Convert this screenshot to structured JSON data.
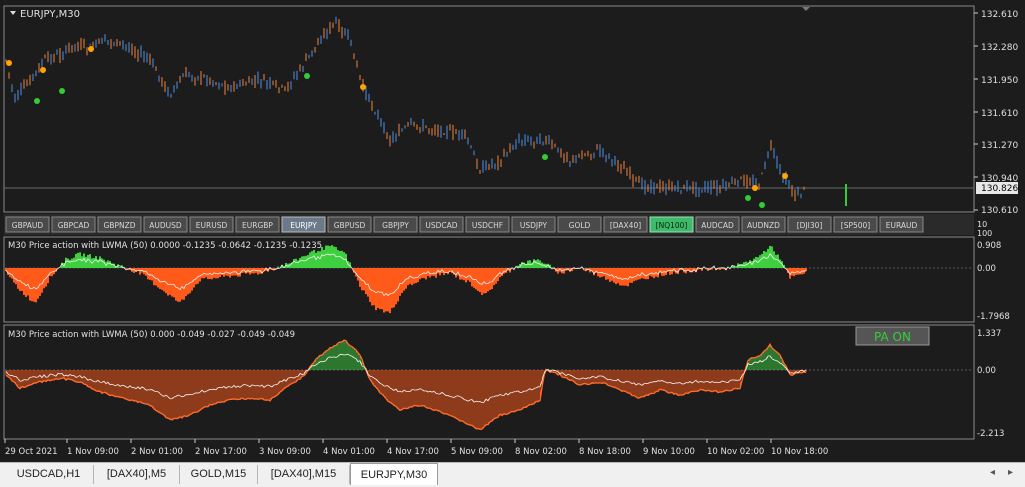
{
  "chart": {
    "symbol_label": "EURJPY,M30",
    "price_axis": [
      "132.610",
      "132.280",
      "131.950",
      "131.610",
      "131.270",
      "130.940",
      "130.610"
    ],
    "current_price": "130.826",
    "colors": {
      "background": "#1c1c1c",
      "bull": "#4f8fe8",
      "bear": "#f0843c",
      "dot_orange": "#ffa500",
      "dot_green": "#33cc33",
      "grid": "#555555"
    }
  },
  "symbol_buttons": [
    {
      "label": "GBPAUD",
      "state": "normal"
    },
    {
      "label": "GBPCAD",
      "state": "normal"
    },
    {
      "label": "GBPNZD",
      "state": "normal"
    },
    {
      "label": "AUDUSD",
      "state": "normal"
    },
    {
      "label": "EURUSD",
      "state": "normal"
    },
    {
      "label": "EURGBP",
      "state": "normal"
    },
    {
      "label": "EURJPY",
      "state": "active"
    },
    {
      "label": "GBPUSD",
      "state": "normal"
    },
    {
      "label": "GBPJPY",
      "state": "normal"
    },
    {
      "label": "USDCAD",
      "state": "normal"
    },
    {
      "label": "USDCHF",
      "state": "normal"
    },
    {
      "label": "USDJPY",
      "state": "normal"
    },
    {
      "label": "GOLD",
      "state": "normal"
    },
    {
      "label": "[DAX40]",
      "state": "normal"
    },
    {
      "label": "[NQ100]",
      "state": "highlight"
    },
    {
      "label": "AUDCAD",
      "state": "normal"
    },
    {
      "label": "AUDNZD",
      "state": "normal"
    },
    {
      "label": "[DJI30]",
      "state": "normal"
    },
    {
      "label": "[SP500]",
      "state": "normal"
    },
    {
      "label": "EURAUD",
      "state": "normal"
    }
  ],
  "indicator1": {
    "title": "M30 Price action with LWMA (50) 0.0000 -0.1235 -0.0642 -0.1235 -0.1235",
    "axis": [
      "0.908",
      "0.00",
      "-1.7968"
    ],
    "top_labels": [
      "10",
      "100"
    ]
  },
  "indicator2": {
    "title": "M30 Price action with LWMA (50) 0.000 -0.049 -0.027 -0.049 -0.049",
    "axis": [
      "1.337",
      "0.00",
      "-2.213"
    ],
    "pa_button": "PA ON"
  },
  "time_axis": [
    "29 Oct 2021",
    "1 Nov 09:00",
    "2 Nov 01:00",
    "2 Nov 17:00",
    "3 Nov 09:00",
    "4 Nov 01:00",
    "4 Nov 17:00",
    "5 Nov 09:00",
    "8 Nov 02:00",
    "8 Nov 18:00",
    "9 Nov 10:00",
    "10 Nov 02:00",
    "10 Nov 18:00"
  ],
  "tabs": [
    {
      "label": "USDCAD,H1",
      "active": false
    },
    {
      "label": "[DAX40],M5",
      "active": false
    },
    {
      "label": "GOLD,M15",
      "active": false
    },
    {
      "label": "[DAX40],M15",
      "active": false
    },
    {
      "label": "EURJPY,M30",
      "active": true
    }
  ]
}
